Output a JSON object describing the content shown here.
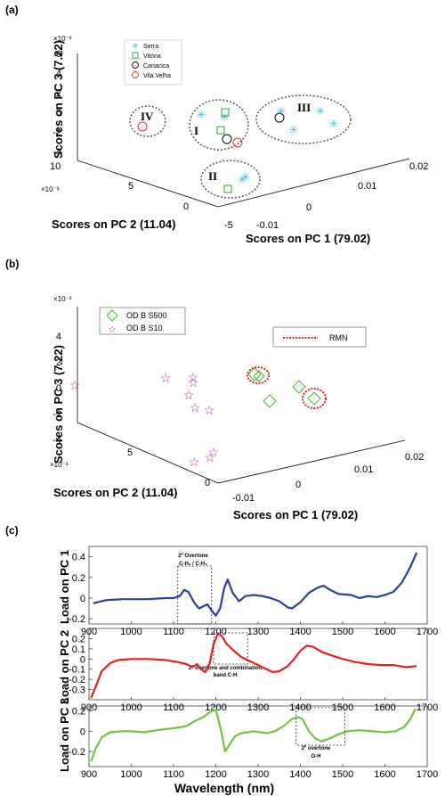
{
  "chart_data": [
    {
      "panel": "(a)",
      "type": "scatter",
      "ylabel": "Scores on PC 3 (7.22)",
      "xlabel": "Scores on PC 2 (11.04)",
      "zlabel": "Scores on PC 1 (79.02)",
      "exponent": "×10⁻³",
      "z_ticks": [
        "6",
        "4",
        "2",
        "0",
        "-2",
        "-4"
      ],
      "pc2_ticks": [
        "10",
        "5",
        "0",
        "-5"
      ],
      "pc1_ticks": [
        "-0.01",
        "0",
        "0.01",
        "0.02"
      ],
      "legend": [
        {
          "name": "Serra",
          "marker": "asterisk",
          "color": "#3cc3d8"
        },
        {
          "name": "Vitória",
          "marker": "square",
          "color": "#2aa12a"
        },
        {
          "name": "Cariacica",
          "marker": "circle",
          "color": "#000000"
        },
        {
          "name": "Vila Velha",
          "marker": "circle",
          "color": "#e03030"
        }
      ],
      "groups": [
        "IV",
        "I",
        "III",
        "II"
      ]
    },
    {
      "panel": "(b)",
      "type": "scatter",
      "ylabel": "Scores on PC 3 (7.22)",
      "xlabel": "Scores on PC 2 (11.04)",
      "zlabel": "Scores on PC 1 (79.02)",
      "exponent": "×10⁻³",
      "z_ticks": [
        "4",
        "2",
        "0",
        "-2",
        "-4"
      ],
      "pc2_ticks": [
        "5",
        "0"
      ],
      "pc1_ticks": [
        "-0.01",
        "0",
        "0.01",
        "0.02"
      ],
      "legend": [
        {
          "name": "OD B S500",
          "marker": "diamond",
          "color": "#4cb82e"
        },
        {
          "name": "OD B S10",
          "marker": "star",
          "color": "#b030a0"
        }
      ],
      "box_legend": "RMN"
    },
    {
      "panel": "(c)",
      "type": "line",
      "xlabel": "Wavelength (nm)",
      "x_ticks": [
        900,
        1000,
        1100,
        1200,
        1300,
        1400,
        1500,
        1600,
        1700
      ],
      "series": [
        {
          "name": "Load on PC 1",
          "color": "#2b3f9e",
          "ylim": [
            -0.25,
            0.5
          ],
          "y_ticks": [
            "0.4",
            "0.2",
            "0",
            "-0.2"
          ],
          "points": [
            [
              910,
              -0.05
            ],
            [
              940,
              -0.02
            ],
            [
              980,
              -0.01
            ],
            [
              1000,
              -0.01
            ],
            [
              1040,
              -0.01
            ],
            [
              1080,
              0.0
            ],
            [
              1100,
              0.0
            ],
            [
              1115,
              0.02
            ],
            [
              1125,
              0.08
            ],
            [
              1135,
              0.06
            ],
            [
              1150,
              -0.05
            ],
            [
              1160,
              -0.1
            ],
            [
              1170,
              -0.08
            ],
            [
              1180,
              -0.06
            ],
            [
              1190,
              -0.12
            ],
            [
              1200,
              -0.17
            ],
            [
              1210,
              -0.1
            ],
            [
              1220,
              0.1
            ],
            [
              1228,
              0.18
            ],
            [
              1240,
              0.05
            ],
            [
              1255,
              -0.03
            ],
            [
              1270,
              0.02
            ],
            [
              1290,
              0.03
            ],
            [
              1310,
              0.02
            ],
            [
              1330,
              0.0
            ],
            [
              1350,
              -0.03
            ],
            [
              1370,
              -0.09
            ],
            [
              1380,
              -0.1
            ],
            [
              1400,
              -0.04
            ],
            [
              1420,
              0.05
            ],
            [
              1440,
              0.1
            ],
            [
              1455,
              0.12
            ],
            [
              1470,
              0.08
            ],
            [
              1490,
              0.04
            ],
            [
              1520,
              0.03
            ],
            [
              1540,
              0.0
            ],
            [
              1560,
              0.02
            ],
            [
              1580,
              0.01
            ],
            [
              1600,
              0.03
            ],
            [
              1620,
              0.06
            ],
            [
              1640,
              0.15
            ],
            [
              1660,
              0.3
            ],
            [
              1675,
              0.44
            ]
          ]
        },
        {
          "name": "Load on PC 2",
          "color": "#e02222",
          "ylim": [
            -0.4,
            0.3
          ],
          "y_ticks": [
            "0.2",
            "0.1",
            "0",
            "-0.1",
            "-0.2",
            "-0.3"
          ],
          "points": [
            [
              905,
              -0.38
            ],
            [
              915,
              -0.28
            ],
            [
              930,
              -0.12
            ],
            [
              950,
              -0.04
            ],
            [
              970,
              -0.01
            ],
            [
              1000,
              0.0
            ],
            [
              1040,
              0.0
            ],
            [
              1080,
              -0.01
            ],
            [
              1110,
              -0.03
            ],
            [
              1130,
              -0.05
            ],
            [
              1145,
              -0.08
            ],
            [
              1155,
              -0.05
            ],
            [
              1165,
              -0.1
            ],
            [
              1175,
              -0.13
            ],
            [
              1185,
              -0.05
            ],
            [
              1195,
              0.15
            ],
            [
              1205,
              0.25
            ],
            [
              1215,
              0.22
            ],
            [
              1225,
              0.15
            ],
            [
              1240,
              0.09
            ],
            [
              1260,
              0.02
            ],
            [
              1280,
              -0.02
            ],
            [
              1300,
              -0.06
            ],
            [
              1320,
              -0.1
            ],
            [
              1335,
              -0.13
            ],
            [
              1350,
              -0.12
            ],
            [
              1370,
              -0.07
            ],
            [
              1385,
              0.0
            ],
            [
              1400,
              0.08
            ],
            [
              1415,
              0.13
            ],
            [
              1430,
              0.12
            ],
            [
              1450,
              0.07
            ],
            [
              1470,
              0.04
            ],
            [
              1500,
              0.0
            ],
            [
              1530,
              -0.03
            ],
            [
              1560,
              -0.05
            ],
            [
              1590,
              -0.06
            ],
            [
              1620,
              -0.06
            ],
            [
              1650,
              -0.08
            ],
            [
              1675,
              -0.07
            ]
          ]
        },
        {
          "name": "Load on PC 3",
          "color": "#74c144",
          "ylim": [
            -0.35,
            0.25
          ],
          "y_ticks": [
            "0.2",
            "0",
            "-0.2"
          ],
          "points": [
            [
              905,
              -0.3
            ],
            [
              915,
              -0.18
            ],
            [
              930,
              -0.06
            ],
            [
              950,
              -0.01
            ],
            [
              980,
              0.0
            ],
            [
              1000,
              0.0
            ],
            [
              1030,
              -0.01
            ],
            [
              1060,
              0.01
            ],
            [
              1100,
              0.03
            ],
            [
              1130,
              0.05
            ],
            [
              1150,
              0.1
            ],
            [
              1170,
              0.14
            ],
            [
              1190,
              0.2
            ],
            [
              1200,
              0.21
            ],
            [
              1210,
              0.05
            ],
            [
              1222,
              -0.2
            ],
            [
              1230,
              -0.15
            ],
            [
              1245,
              -0.05
            ],
            [
              1260,
              -0.02
            ],
            [
              1290,
              0.0
            ],
            [
              1320,
              -0.02
            ],
            [
              1340,
              0.0
            ],
            [
              1360,
              0.05
            ],
            [
              1380,
              0.12
            ],
            [
              1395,
              0.14
            ],
            [
              1405,
              0.12
            ],
            [
              1420,
              0.0
            ],
            [
              1435,
              -0.07
            ],
            [
              1450,
              -0.1
            ],
            [
              1470,
              -0.07
            ],
            [
              1490,
              -0.03
            ],
            [
              1510,
              0.0
            ],
            [
              1540,
              0.01
            ],
            [
              1570,
              0.0
            ],
            [
              1600,
              -0.01
            ],
            [
              1625,
              0.0
            ],
            [
              1645,
              0.04
            ],
            [
              1660,
              0.12
            ],
            [
              1672,
              0.22
            ]
          ]
        }
      ],
      "annotations": [
        {
          "lines": [
            "2º Overtone",
            "C-H₂ / C-H₃"
          ]
        },
        {
          "lines": [
            "2º overtone and combination",
            "band C-H"
          ]
        },
        {
          "lines": [
            "2º overtone",
            "O-H"
          ]
        }
      ]
    }
  ]
}
